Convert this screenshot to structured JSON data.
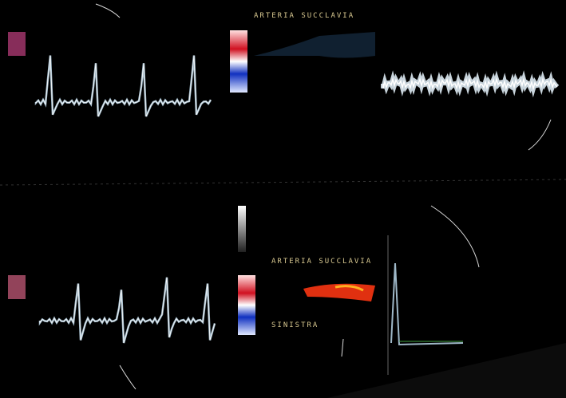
{
  "labels": {
    "top_panel": "ARTERIA SUCCLAVIA",
    "bottom_panel": "ARTERIA SUCCLAVIA",
    "bottom_side": "SINISTRA"
  }
}
